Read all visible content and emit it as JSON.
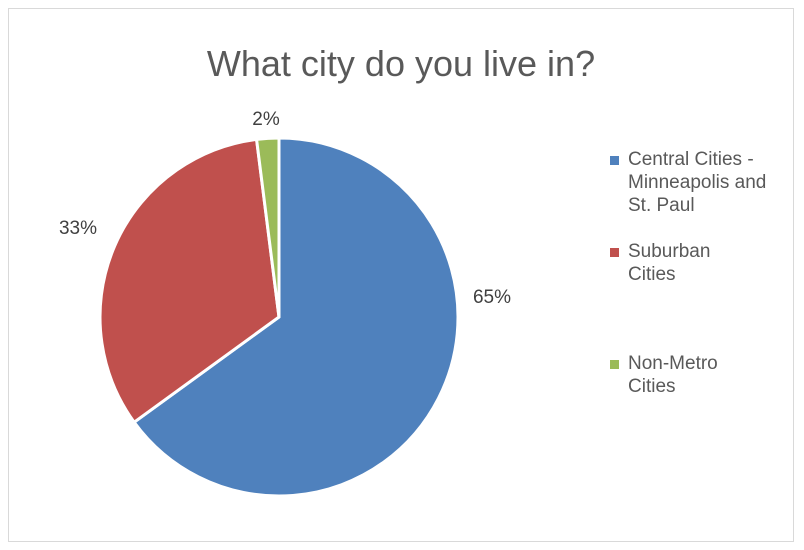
{
  "chart_data": {
    "type": "pie",
    "title": "What city do you live in?",
    "legend_position": "right",
    "slices": [
      {
        "label": "Central Cities - Minneapolis and St. Paul",
        "value": 65,
        "display": "65%",
        "color": "#4f81bd"
      },
      {
        "label": "Suburban Cities",
        "value": 33,
        "display": "33%",
        "color": "#c0504d"
      },
      {
        "label": "Non-Metro Cities",
        "value": 2,
        "display": "2%",
        "color": "#9bbb59"
      }
    ]
  }
}
